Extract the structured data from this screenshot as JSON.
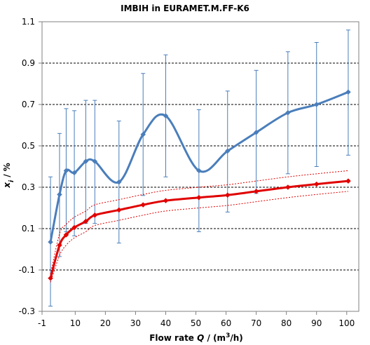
{
  "chart_data": {
    "type": "line",
    "title": "IMBIH in EURAMET.M.FF-K6",
    "xlabel": {
      "prefix": "Flow rate ",
      "var": "Q",
      "mid": " / (m",
      "sup": "3",
      "suffix": "/h)"
    },
    "ylabel": {
      "var": "x",
      "sub": "i",
      "suffix": " / %"
    },
    "xlim": [
      -1,
      104
    ],
    "ylim": [
      -0.3,
      1.1
    ],
    "x_ticks": [
      -1,
      10,
      20,
      30,
      40,
      50,
      60,
      70,
      80,
      90,
      100
    ],
    "y_ticks": [
      -0.3,
      -0.1,
      0.1,
      0.3,
      0.5,
      0.7,
      0.9,
      1.1
    ],
    "y_tick_labels": [
      "-0.3",
      "-0.1",
      "0.1",
      "0.3",
      "0.5",
      "0.7",
      "0.9",
      "1.1"
    ],
    "grid": "horizontal dashed at major ticks",
    "legend": "none",
    "series": [
      {
        "color": "#4a7ebb",
        "style": "smooth line with diamond markers and vertical error bars",
        "x": [
          1.8,
          4.8,
          7.0,
          9.7,
          13.5,
          16.5,
          24.5,
          32.5,
          40,
          51,
          60.5,
          70,
          80.5,
          90,
          100.5
        ],
        "y": [
          0.035,
          0.265,
          0.38,
          0.37,
          0.425,
          0.425,
          0.325,
          0.555,
          0.645,
          0.38,
          0.475,
          0.565,
          0.66,
          0.7,
          0.76
        ],
        "err_low": [
          -0.275,
          -0.035,
          0.085,
          0.065,
          0.125,
          0.125,
          0.03,
          0.26,
          0.35,
          0.085,
          0.18,
          0.27,
          0.365,
          0.4,
          0.455
        ],
        "err_high": [
          0.35,
          0.56,
          0.68,
          0.67,
          0.72,
          0.72,
          0.62,
          0.85,
          0.94,
          0.675,
          0.765,
          0.865,
          0.955,
          1.0,
          1.06
        ]
      },
      {
        "color": "#e00000",
        "style": "bold smooth line with diamond markers",
        "x": [
          1.8,
          4.8,
          7.0,
          9.7,
          13.5,
          16.5,
          24.5,
          32.5,
          40,
          51,
          60.5,
          70,
          80.5,
          90,
          100.5
        ],
        "y": [
          -0.14,
          0.02,
          0.07,
          0.105,
          0.135,
          0.165,
          0.19,
          0.215,
          0.235,
          0.25,
          0.262,
          0.28,
          0.3,
          0.315,
          0.33
        ]
      },
      {
        "color": "#e00000",
        "style": "thin dotted upper band",
        "x": [
          1.8,
          4.8,
          7.0,
          9.7,
          13.5,
          16.5,
          24.5,
          32.5,
          40,
          51,
          60.5,
          70,
          80.5,
          90,
          100.5
        ],
        "y": [
          -0.12,
          0.075,
          0.12,
          0.155,
          0.185,
          0.215,
          0.24,
          0.265,
          0.285,
          0.3,
          0.312,
          0.33,
          0.35,
          0.365,
          0.38
        ]
      },
      {
        "color": "#e00000",
        "style": "thin dotted lower band",
        "x": [
          1.8,
          4.8,
          7.0,
          9.7,
          13.5,
          16.5,
          24.5,
          32.5,
          40,
          51,
          60.5,
          70,
          80.5,
          90,
          100.5
        ],
        "y": [
          -0.16,
          -0.03,
          0.02,
          0.055,
          0.085,
          0.115,
          0.14,
          0.165,
          0.185,
          0.2,
          0.212,
          0.23,
          0.25,
          0.265,
          0.28
        ]
      }
    ]
  }
}
